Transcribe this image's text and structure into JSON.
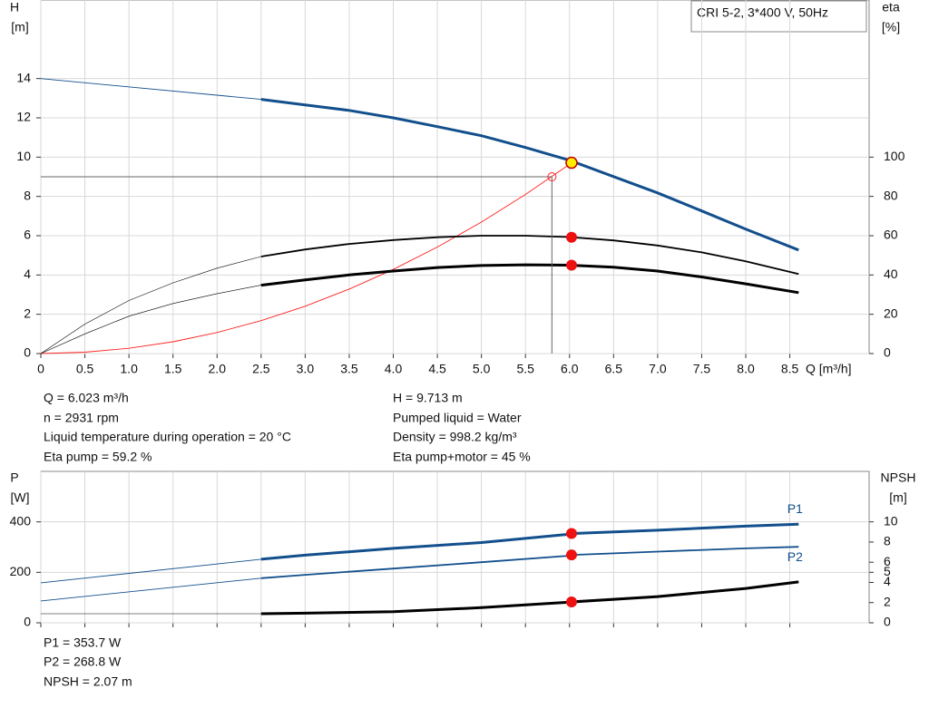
{
  "chart_data": [
    {
      "type": "line",
      "title": "CRI 5-2, 3*400 V, 50Hz",
      "x_label": "Q [m³/h]",
      "y_label": "H",
      "y_unit": "[m]",
      "y2_label": "eta",
      "y2_unit": "[%]",
      "xlim": [
        0,
        9.4
      ],
      "ylim": [
        0,
        18
      ],
      "y2lim": [
        0,
        180
      ],
      "grid": true,
      "xtick_labels": true,
      "xticks": [
        0,
        0.5,
        {
          "value": 1,
          "label": "1.0"
        },
        1.5,
        {
          "value": 2,
          "label": "2.0"
        },
        2.5,
        {
          "value": 3,
          "label": "3.0"
        },
        3.5,
        {
          "value": 4,
          "label": "4.0"
        },
        4.5,
        {
          "value": 5,
          "label": "5.0"
        },
        5.5,
        {
          "value": 6,
          "label": "6.0"
        },
        6.5,
        {
          "value": 7,
          "label": "7.0"
        },
        7.5,
        {
          "value": 8,
          "label": "8.0"
        },
        8.5
      ],
      "yticks": [
        0,
        2,
        4,
        6,
        8,
        10,
        12,
        14
      ],
      "y2ticks": [
        0,
        20,
        40,
        60,
        80,
        100
      ],
      "series": [
        {
          "color": "#ff2020",
          "style": "thin",
          "x": [
            0,
            0.5,
            1,
            1.5,
            2,
            2.5,
            3,
            3.5,
            4,
            4.5,
            5,
            5.5,
            6,
            6.023
          ],
          "values": [
            0,
            0.067,
            0.268,
            0.602,
            1.071,
            1.674,
            2.41,
            3.28,
            4.284,
            5.422,
            6.694,
            8.1,
            9.639,
            9.713
          ]
        },
        {
          "color": "#124f8c",
          "style": "thin",
          "x": [
            0,
            2.5
          ],
          "values": [
            14,
            12.94
          ]
        },
        {
          "color": "#124f8c",
          "style": "thick",
          "x": [
            2.5,
            3,
            3.5,
            4,
            4.5,
            5,
            5.5,
            6,
            6.5,
            7,
            7.5,
            8,
            8.6
          ],
          "values": [
            12.94,
            12.66,
            12.38,
            12.0,
            11.55,
            11.09,
            10.49,
            9.84,
            9.01,
            8.18,
            7.26,
            6.33,
            5.27
          ]
        },
        {
          "color": "#000000",
          "style": "hair",
          "axis": "y2",
          "x": [
            0,
            0.5,
            1,
            1.5,
            2,
            2.5
          ],
          "values": [
            0,
            15,
            27,
            36,
            43.5,
            49.4
          ]
        },
        {
          "color": "#000000",
          "style": "medium",
          "axis": "y2",
          "x": [
            2.5,
            3,
            3.5,
            4,
            4.5,
            5,
            5.5,
            6,
            6.5,
            7,
            7.5,
            8,
            8.6
          ],
          "values": [
            49.4,
            53,
            55.8,
            57.8,
            59.2,
            60,
            60,
            59.3,
            57.6,
            55,
            51.5,
            47,
            40.5
          ]
        },
        {
          "color": "#000000",
          "style": "hair",
          "axis": "y2",
          "x": [
            0,
            0.5,
            1,
            1.5,
            2,
            2.5
          ],
          "values": [
            0,
            10,
            19,
            25.5,
            30.5,
            34.8
          ]
        },
        {
          "color": "#000000",
          "style": "thick",
          "axis": "y2",
          "x": [
            2.5,
            3,
            3.5,
            4,
            4.5,
            5,
            5.5,
            6,
            6.5,
            7,
            7.5,
            8,
            8.6
          ],
          "values": [
            34.8,
            37.5,
            40,
            42,
            43.8,
            44.8,
            45.2,
            45,
            44,
            42,
            39,
            35.5,
            31
          ]
        }
      ],
      "points": [
        {
          "x": 5.8,
          "y": 9,
          "color": "#ff2020",
          "style": "open",
          "guides": true
        },
        {
          "x": 6.023,
          "y": 9.713,
          "color": "#ffee00",
          "style": "filled"
        },
        {
          "x": 6.023,
          "y": 59.2,
          "axis": "y2",
          "color": "#ee1111",
          "style": "filled"
        },
        {
          "x": 6.023,
          "y": 45,
          "axis": "y2",
          "color": "#ee1111",
          "style": "filled"
        }
      ]
    },
    {
      "type": "line",
      "y_label": "P",
      "y_unit": "[W]",
      "y2_label": "NPSH",
      "y2_unit": "[m]",
      "xlim": [
        0,
        9.4
      ],
      "ylim": [
        0,
        600
      ],
      "y2lim": [
        0,
        15
      ],
      "grid": true,
      "xtick_labels": false,
      "xticks": [
        0,
        0.5,
        1,
        1.5,
        2,
        2.5,
        3,
        3.5,
        4,
        4.5,
        5,
        5.5,
        6,
        6.5,
        7,
        7.5,
        8,
        8.5
      ],
      "yticks": [
        0,
        200,
        400
      ],
      "y2ticks": [
        0,
        2,
        4,
        5,
        6,
        8,
        10
      ],
      "series": [
        {
          "color": "#124f8c",
          "style": "thin",
          "x": [
            0,
            2.5
          ],
          "values": [
            158.6,
            252
          ]
        },
        {
          "name": "P1",
          "color": "#124f8c",
          "style": "thick",
          "x": [
            2.5,
            3,
            4,
            5,
            6,
            6.023,
            7,
            8,
            8.6
          ],
          "values": [
            252,
            268,
            295,
            318,
            351,
            353.7,
            367,
            383,
            391
          ]
        },
        {
          "color": "#124f8c",
          "style": "thin",
          "x": [
            0,
            2.5
          ],
          "values": [
            86.5,
            176.6
          ]
        },
        {
          "name": "P2",
          "color": "#124f8c",
          "style": "medium",
          "x": [
            2.5,
            3,
            4,
            5,
            6,
            6.023,
            7,
            8,
            8.6
          ],
          "values": [
            176.6,
            190,
            215,
            240,
            266,
            268.8,
            282,
            295,
            301
          ]
        },
        {
          "color": "#000000",
          "style": "hair",
          "axis": "y2",
          "x": [
            0,
            2.5
          ],
          "values": [
            0.9,
            0.9
          ]
        },
        {
          "color": "#000000",
          "style": "thick",
          "axis": "y2",
          "x": [
            2.5,
            3,
            4,
            5,
            6,
            6.023,
            7,
            8,
            8.6
          ],
          "values": [
            0.9,
            0.95,
            1.1,
            1.5,
            2.05,
            2.07,
            2.6,
            3.4,
            4.05
          ]
        }
      ],
      "points": [
        {
          "x": 6.023,
          "y": 353.7,
          "color": "#ee1111",
          "style": "filled"
        },
        {
          "x": 6.023,
          "y": 268.8,
          "color": "#ee1111",
          "style": "filled"
        },
        {
          "x": 6.023,
          "y": 2.07,
          "axis": "y2",
          "color": "#ee1111",
          "style": "filled"
        }
      ]
    }
  ],
  "info": {
    "left": [
      "Q = 6.023 m³/h",
      "n = 2931 rpm",
      "Liquid temperature during operation = 20 °C",
      "Eta pump = 59.2 %"
    ],
    "right": [
      "H = 9.713 m",
      "Pumped liquid = Water",
      "Density = 998.2 kg/m³",
      "Eta pump+motor = 45 %"
    ],
    "bottom": [
      "P1 = 353.7 W",
      "P2 = 268.8 W",
      "NPSH = 2.07 m"
    ]
  }
}
